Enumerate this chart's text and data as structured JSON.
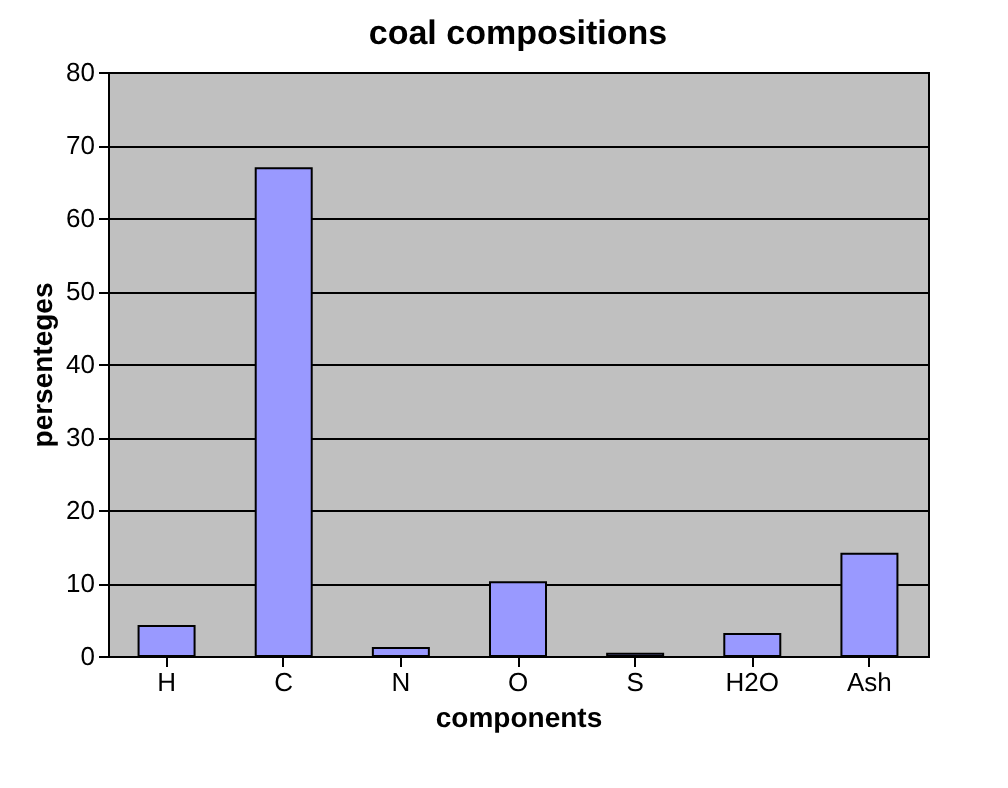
{
  "chart_data": {
    "type": "bar",
    "title": "coal compositions",
    "xlabel": "components",
    "ylabel": "persenteges",
    "categories": [
      "H",
      "C",
      "N",
      "O",
      "S",
      "H2O",
      "Ash"
    ],
    "series": [
      {
        "color": "#9999ff",
        "values": [
          4.1,
          66.8,
          1.1,
          10.1,
          0.3,
          3.0,
          14.0
        ]
      }
    ],
    "ylim": [
      0,
      80
    ],
    "yticks": [
      0,
      10,
      20,
      30,
      40,
      50,
      60,
      70,
      80
    ],
    "grid": "y"
  }
}
